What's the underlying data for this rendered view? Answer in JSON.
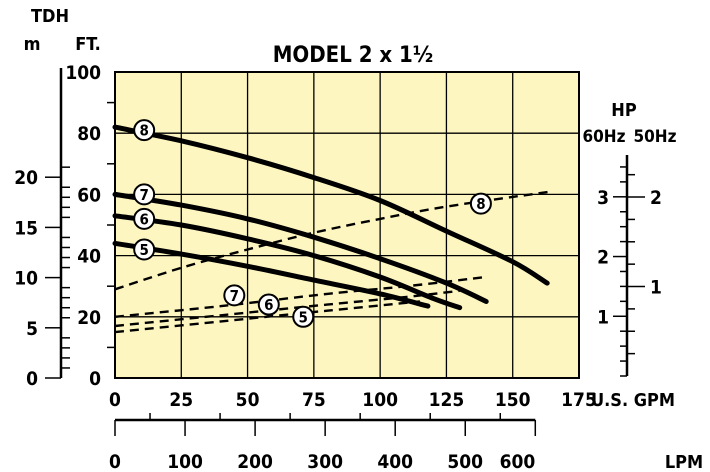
{
  "chart_data": {
    "type": "line",
    "title": "MODEL 2 x 1½",
    "colors": {
      "plot_background": "#fdf6c0",
      "grid": "#000000",
      "line": "#000000"
    },
    "grid": true,
    "left_axes": {
      "tdh_label": "TDH",
      "meters": {
        "unit_label": "m",
        "ticks": [
          0,
          5,
          10,
          15,
          20
        ],
        "range": [
          0,
          30.48
        ]
      },
      "feet": {
        "unit_label": "FT.",
        "ticks": [
          0,
          20,
          40,
          60,
          80,
          100
        ],
        "range": [
          0,
          100
        ]
      }
    },
    "bottom_axes": {
      "gpm": {
        "unit_label": "U.S. GPM",
        "ticks": [
          0,
          25,
          50,
          75,
          100,
          125,
          150,
          175
        ],
        "range": [
          0,
          175
        ]
      },
      "lpm": {
        "unit_label": "LPM",
        "ticks": [
          0,
          100,
          200,
          300,
          400,
          500,
          600
        ],
        "range": [
          0,
          662.4
        ]
      }
    },
    "right_axes": {
      "hp_label": "HP",
      "hz60": {
        "unit_label": "60Hz",
        "ticks": [
          1,
          2,
          3
        ],
        "range": [
          0,
          3.7
        ]
      },
      "hz50": {
        "unit_label": "50Hz",
        "ticks": [
          1,
          2
        ],
        "range": [
          0,
          2.47
        ]
      }
    },
    "head_curves": [
      {
        "name": "8",
        "marker_at": [
          11,
          81
        ],
        "points": [
          [
            0,
            82
          ],
          [
            25,
            77.5
          ],
          [
            50,
            72
          ],
          [
            75,
            65.5
          ],
          [
            100,
            58
          ],
          [
            125,
            48
          ],
          [
            150,
            38
          ],
          [
            163,
            31
          ]
        ]
      },
      {
        "name": "7",
        "marker_at": [
          11,
          60
        ],
        "points": [
          [
            0,
            60
          ],
          [
            25,
            56.5
          ],
          [
            50,
            52
          ],
          [
            75,
            46
          ],
          [
            100,
            39
          ],
          [
            125,
            31
          ],
          [
            140,
            25
          ]
        ]
      },
      {
        "name": "6",
        "marker_at": [
          11,
          52
        ],
        "points": [
          [
            0,
            53
          ],
          [
            25,
            50
          ],
          [
            50,
            45.5
          ],
          [
            75,
            40
          ],
          [
            100,
            33
          ],
          [
            120,
            26
          ],
          [
            130,
            23
          ]
        ]
      },
      {
        "name": "5",
        "marker_at": [
          11,
          42
        ],
        "points": [
          [
            0,
            44
          ],
          [
            25,
            40.5
          ],
          [
            50,
            36.5
          ],
          [
            75,
            32
          ],
          [
            100,
            27.5
          ],
          [
            118,
            23.5
          ]
        ]
      }
    ],
    "power_curves": [
      {
        "name": "8",
        "marker_at": [
          138,
          57
        ],
        "points": [
          [
            0,
            29
          ],
          [
            25,
            36
          ],
          [
            50,
            42
          ],
          [
            75,
            47.5
          ],
          [
            100,
            52
          ],
          [
            125,
            56
          ],
          [
            165,
            61
          ]
        ]
      },
      {
        "name": "7",
        "marker_at": [
          45,
          27
        ],
        "points": [
          [
            0,
            20
          ],
          [
            40,
            23.5
          ],
          [
            80,
            27.5
          ],
          [
            110,
            30
          ],
          [
            140,
            33
          ]
        ]
      },
      {
        "name": "6",
        "marker_at": [
          58,
          24
        ],
        "points": [
          [
            0,
            17
          ],
          [
            40,
            20.5
          ],
          [
            80,
            24
          ],
          [
            110,
            26.5
          ],
          [
            130,
            28.5
          ]
        ]
      },
      {
        "name": "5",
        "marker_at": [
          71,
          20
        ],
        "points": [
          [
            0,
            15
          ],
          [
            40,
            18.5
          ],
          [
            80,
            22
          ],
          [
            115,
            25
          ]
        ]
      }
    ]
  }
}
